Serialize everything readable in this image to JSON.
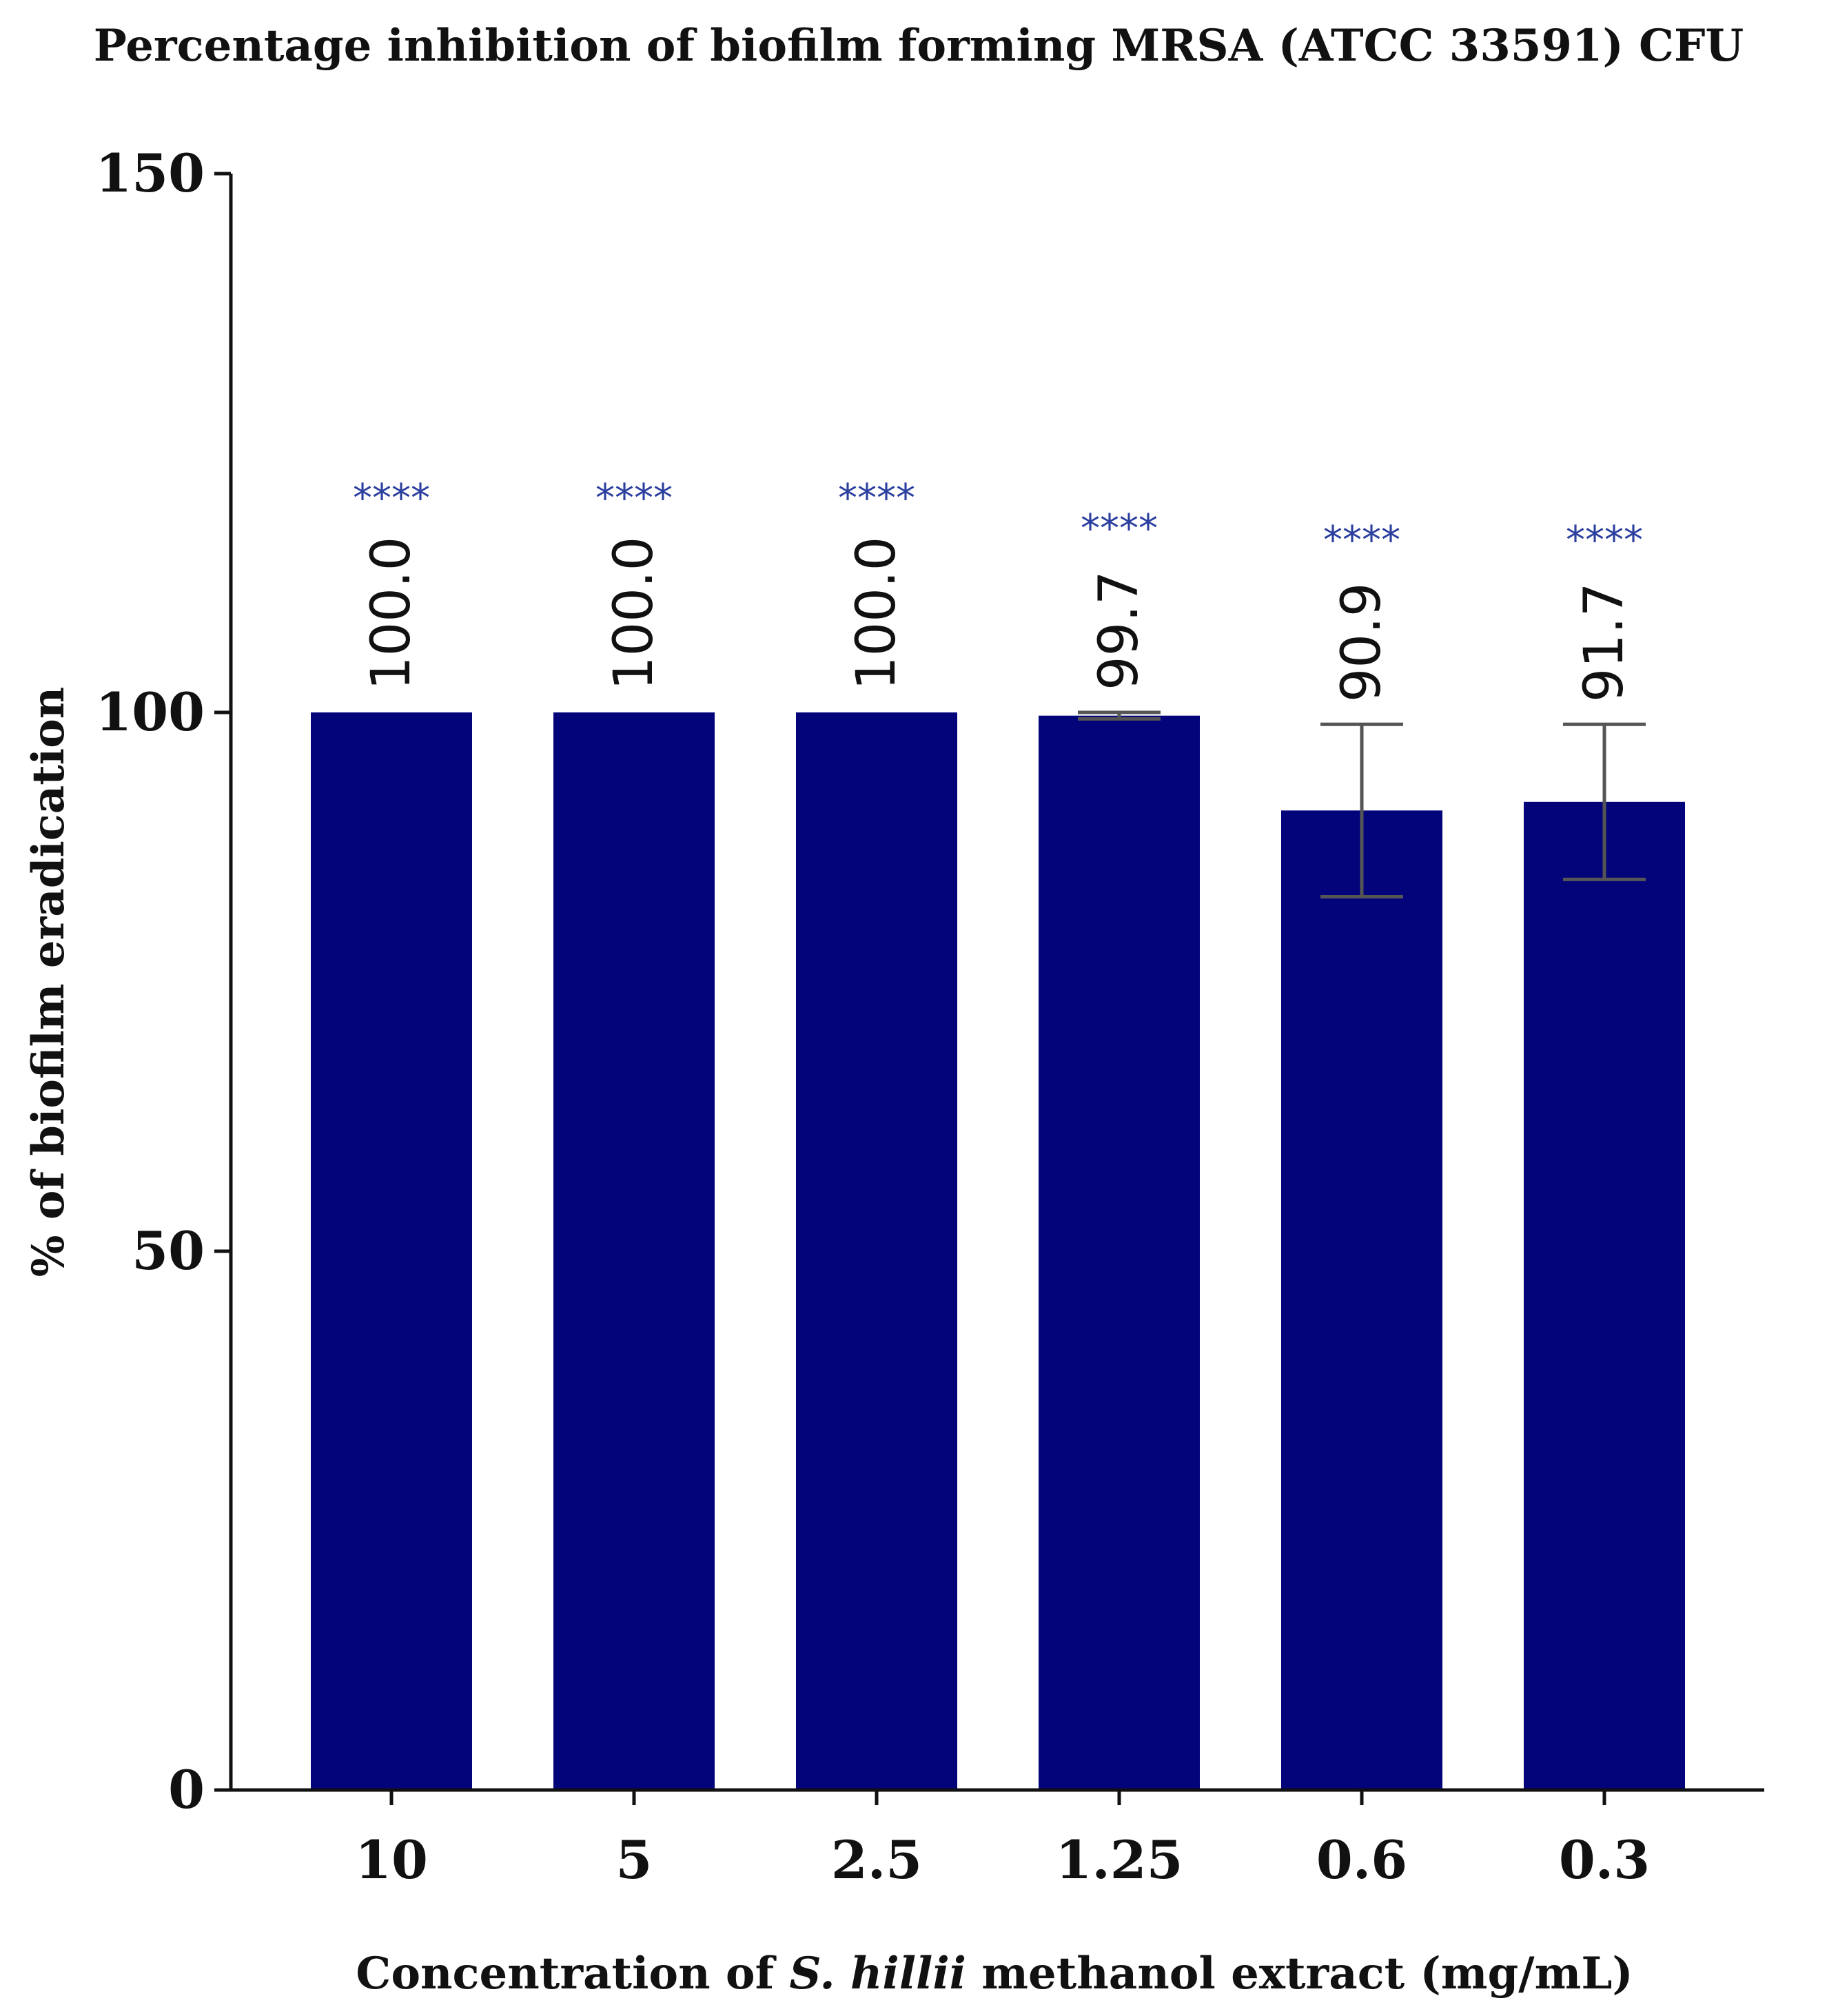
{
  "chart_data": {
    "type": "bar",
    "title": "Percentage inhibition of biofilm forming MRSA (ATCC 33591) CFU",
    "categories": [
      "10",
      "5",
      "2.5",
      "1.25",
      "0.6",
      "0.3"
    ],
    "values": [
      100.0,
      100.0,
      100.0,
      99.7,
      90.9,
      91.7
    ],
    "value_labels": [
      "100.0",
      "100.0",
      "100.0",
      "99.7",
      "90.9",
      "91.7"
    ],
    "error": [
      0,
      0,
      0,
      0.3,
      8.0,
      7.2
    ],
    "significance": [
      "****",
      "****",
      "****",
      "****",
      "****",
      "****"
    ],
    "ylim": [
      0,
      150
    ],
    "yticks": [
      0,
      50,
      100,
      150
    ],
    "ylabel": "% of biofilm eradication",
    "xlabel": {
      "prefix": "Concentration of ",
      "species": "S. hillii",
      "suffix": " methanol extract (mg/mL)"
    },
    "grid": false,
    "bar_color": "#04047a",
    "significance_color": "#2b3f9e"
  }
}
